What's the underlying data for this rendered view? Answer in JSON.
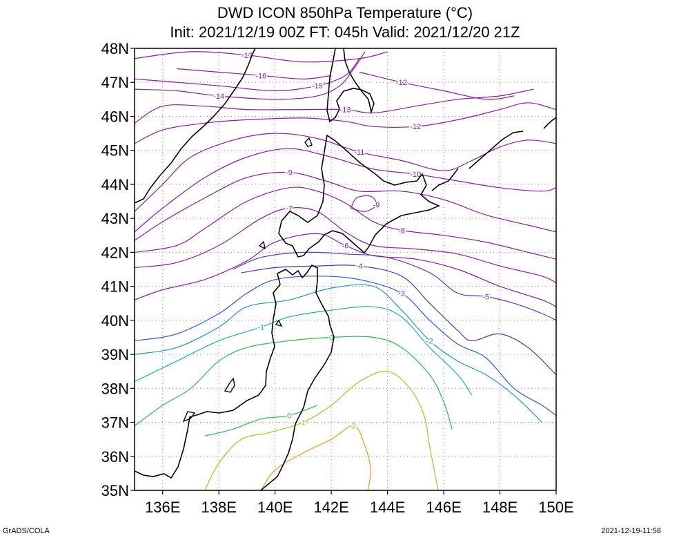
{
  "title": "DWD ICON 850hPa Temperature (°C)",
  "subtitle": "Init: 2021/12/19 00Z  FT: 045h  Valid: 2021/12/20 21Z",
  "footer_left": "GrADS/COLA",
  "footer_right": "2021-12-19-11:58",
  "map": {
    "lon_range": [
      135,
      150
    ],
    "lat_range": [
      35,
      48
    ],
    "lon_ticks": [
      136,
      138,
      140,
      142,
      144,
      146,
      148,
      150
    ],
    "lon_tick_labels": [
      "136E",
      "138E",
      "140E",
      "142E",
      "144E",
      "146E",
      "148E",
      "150E"
    ],
    "lat_ticks": [
      35,
      36,
      37,
      38,
      39,
      40,
      41,
      42,
      43,
      44,
      45,
      46,
      47,
      48
    ],
    "lat_tick_labels": [
      "35N",
      "36N",
      "37N",
      "38N",
      "39N",
      "40N",
      "41N",
      "42N",
      "43N",
      "44N",
      "45N",
      "46N",
      "47N",
      "48N"
    ],
    "grid": "dotted"
  },
  "isotherms": [
    {
      "value": -17,
      "color": "#8a1aa6",
      "pts": [
        [
          135.0,
          47.7
        ],
        [
          137.0,
          47.9
        ],
        [
          139.0,
          47.8
        ],
        [
          141.0,
          47.6
        ],
        [
          143.0,
          47.7
        ],
        [
          144.0,
          47.9
        ]
      ]
    },
    {
      "value": -16,
      "color": "#8a1aa6",
      "pts": [
        [
          136.5,
          47.4
        ],
        [
          138.0,
          47.3
        ],
        [
          139.5,
          47.2
        ],
        [
          141.0,
          47.1
        ],
        [
          142.0,
          47.2
        ]
      ]
    },
    {
      "value": -15,
      "color": "#8a1aa6",
      "pts": [
        [
          135.0,
          47.1
        ],
        [
          136.5,
          47.0
        ],
        [
          138.0,
          46.9
        ],
        [
          140.0,
          46.75
        ],
        [
          141.5,
          46.9
        ],
        [
          142.5,
          47.2
        ],
        [
          143.0,
          47.7
        ]
      ]
    },
    {
      "value": -14,
      "color": "#8a1aa6",
      "pts": [
        [
          135.0,
          46.8
        ],
        [
          136.5,
          46.75
        ],
        [
          138.0,
          46.6
        ],
        [
          140.0,
          46.5
        ],
        [
          141.5,
          46.6
        ],
        [
          142.3,
          46.9
        ],
        [
          142.8,
          47.4
        ],
        [
          143.2,
          47.9
        ]
      ]
    },
    {
      "value": -13,
      "color": "#8a1aa6",
      "pts": [
        [
          135.0,
          45.8
        ],
        [
          136.0,
          46.3
        ],
        [
          137.5,
          46.3
        ],
        [
          139.0,
          46.2
        ],
        [
          141.0,
          46.2
        ],
        [
          142.5,
          46.2
        ],
        [
          143.5,
          46.1
        ],
        [
          145.0,
          46.3
        ],
        [
          146.5,
          46.5
        ],
        [
          148.0,
          46.6
        ],
        [
          149.2,
          46.8
        ]
      ]
    },
    {
      "value": -12,
      "color": "#8a1aa6",
      "pts": [
        [
          135.0,
          45.2
        ],
        [
          136.0,
          45.6
        ],
        [
          137.5,
          45.8
        ],
        [
          139.0,
          45.9
        ],
        [
          141.0,
          45.95
        ],
        [
          142.5,
          45.85
        ],
        [
          143.5,
          45.7
        ],
        [
          145.0,
          45.7
        ],
        [
          146.5,
          45.9
        ],
        [
          148.0,
          46.2
        ],
        [
          149.0,
          46.4
        ],
        [
          150.0,
          46.2
        ]
      ]
    },
    {
      "value": -12,
      "color": "#8a1aa6",
      "pts": [
        [
          143.0,
          47.3
        ],
        [
          144.5,
          47.0
        ],
        [
          146.0,
          46.75
        ],
        [
          147.5,
          46.5
        ],
        [
          148.5,
          46.6
        ]
      ]
    },
    {
      "value": -11,
      "color": "#8a1aa6",
      "pts": [
        [
          135.0,
          43.2
        ],
        [
          136.0,
          44.0
        ],
        [
          137.0,
          44.8
        ],
        [
          138.5,
          45.3
        ],
        [
          140.0,
          45.5
        ],
        [
          141.5,
          45.35
        ],
        [
          143.0,
          44.95
        ],
        [
          144.5,
          44.7
        ],
        [
          146.0,
          44.4
        ],
        [
          147.0,
          44.7
        ],
        [
          148.0,
          45.1
        ],
        [
          149.0,
          45.3
        ],
        [
          150.0,
          45.2
        ]
      ]
    },
    {
      "value": -10,
      "color": "#8a1aa6",
      "pts": [
        [
          135.0,
          42.6
        ],
        [
          136.0,
          43.3
        ],
        [
          137.5,
          44.2
        ],
        [
          139.0,
          44.8
        ],
        [
          140.5,
          45.05
        ],
        [
          142.0,
          44.8
        ],
        [
          143.5,
          44.45
        ],
        [
          145.0,
          44.3
        ],
        [
          146.5,
          44.1
        ],
        [
          148.0,
          43.9
        ],
        [
          149.5,
          43.8
        ],
        [
          150.0,
          43.9
        ]
      ]
    },
    {
      "value": -9,
      "color": "#8a1aa6",
      "pts": [
        [
          135.0,
          42.35
        ],
        [
          136.0,
          42.9
        ],
        [
          137.5,
          43.6
        ],
        [
          139.0,
          44.2
        ],
        [
          140.5,
          44.35
        ],
        [
          141.8,
          44.1
        ],
        [
          143.0,
          43.8
        ],
        [
          144.5,
          43.8
        ],
        [
          146.0,
          43.55
        ],
        [
          147.5,
          43.1
        ],
        [
          149.0,
          42.8
        ],
        [
          150.0,
          42.6
        ]
      ]
    },
    {
      "value": -9,
      "color": "#8a1aa6",
      "pts": [
        [
          142.7,
          43.3
        ],
        [
          142.9,
          43.6
        ],
        [
          143.4,
          43.65
        ],
        [
          143.6,
          43.4
        ],
        [
          143.2,
          43.2
        ],
        [
          142.7,
          43.3
        ]
      ]
    },
    {
      "value": -8,
      "color": "#8a1aa6",
      "pts": [
        [
          135.0,
          42.0
        ],
        [
          136.5,
          42.2
        ],
        [
          137.5,
          42.7
        ],
        [
          139.0,
          43.5
        ],
        [
          140.5,
          43.9
        ],
        [
          141.5,
          43.8
        ],
        [
          142.5,
          43.45
        ],
        [
          143.5,
          42.9
        ],
        [
          144.5,
          42.65
        ],
        [
          146.0,
          42.5
        ],
        [
          147.5,
          42.3
        ],
        [
          149.0,
          42.0
        ],
        [
          150.0,
          41.8
        ]
      ]
    },
    {
      "value": -7,
      "color": "#8a1aa6",
      "pts": [
        [
          135.0,
          41.55
        ],
        [
          136.5,
          41.7
        ],
        [
          138.0,
          42.2
        ],
        [
          139.5,
          43.0
        ],
        [
          140.5,
          43.3
        ],
        [
          141.5,
          43.2
        ],
        [
          142.5,
          42.6
        ],
        [
          143.5,
          42.2
        ],
        [
          145.0,
          42.1
        ],
        [
          146.5,
          41.95
        ],
        [
          148.0,
          41.6
        ],
        [
          149.5,
          41.3
        ],
        [
          150.0,
          41.1
        ]
      ]
    },
    {
      "value": -6,
      "color": "#8a1aa6",
      "pts": [
        [
          135.0,
          40.6
        ],
        [
          136.0,
          40.9
        ],
        [
          137.5,
          41.2
        ],
        [
          139.0,
          41.75
        ],
        [
          140.0,
          42.3
        ],
        [
          141.5,
          42.55
        ],
        [
          142.5,
          42.2
        ],
        [
          143.5,
          41.9
        ],
        [
          145.0,
          41.8
        ],
        [
          146.5,
          41.5
        ],
        [
          148.0,
          41.0
        ],
        [
          149.5,
          40.6
        ],
        [
          150.0,
          40.4
        ]
      ]
    },
    {
      "value": -5,
      "color": "#6d2fbd",
      "pts": [
        [
          138.5,
          41.5
        ],
        [
          139.5,
          41.85
        ],
        [
          141.0,
          42.0
        ],
        [
          142.5,
          41.95
        ],
        [
          144.0,
          41.85
        ],
        [
          145.5,
          41.4
        ],
        [
          146.5,
          40.8
        ],
        [
          147.5,
          40.7
        ],
        [
          148.5,
          40.5
        ],
        [
          149.5,
          40.2
        ],
        [
          150.0,
          40.0
        ]
      ]
    },
    {
      "value": -4,
      "color": "#4638c8",
      "pts": [
        [
          138.8,
          41.4
        ],
        [
          140.0,
          41.55
        ],
        [
          141.5,
          41.6
        ],
        [
          143.0,
          41.6
        ],
        [
          144.5,
          41.3
        ],
        [
          145.5,
          40.5
        ],
        [
          146.5,
          39.7
        ],
        [
          147.0,
          39.4
        ],
        [
          148.0,
          39.6
        ],
        [
          149.0,
          39.2
        ],
        [
          150.0,
          38.4
        ]
      ]
    },
    {
      "value": -3,
      "color": "#2b58d8",
      "pts": [
        [
          135.0,
          39.4
        ],
        [
          136.5,
          39.6
        ],
        [
          138.0,
          40.2
        ],
        [
          139.0,
          40.8
        ],
        [
          140.0,
          41.2
        ],
        [
          141.5,
          41.3
        ],
        [
          143.0,
          41.2
        ],
        [
          144.5,
          40.8
        ],
        [
          145.5,
          40.0
        ],
        [
          146.5,
          39.3
        ],
        [
          147.5,
          38.9
        ],
        [
          148.5,
          38.0
        ],
        [
          149.5,
          37.5
        ],
        [
          150.0,
          37.2
        ]
      ]
    },
    {
      "value": -2,
      "color": "#1e98c8",
      "pts": [
        [
          135.0,
          39.0
        ],
        [
          136.5,
          39.2
        ],
        [
          138.0,
          39.8
        ],
        [
          139.0,
          40.4
        ],
        [
          140.5,
          40.6
        ],
        [
          142.0,
          40.95
        ],
        [
          143.5,
          41.0
        ],
        [
          144.5,
          40.3
        ],
        [
          145.5,
          39.4
        ],
        [
          146.5,
          38.8
        ],
        [
          147.5,
          38.4
        ],
        [
          148.5,
          37.8
        ],
        [
          149.5,
          37.0
        ]
      ]
    },
    {
      "value": -1,
      "color": "#1ab0a8",
      "pts": [
        [
          135.0,
          38.2
        ],
        [
          136.5,
          38.8
        ],
        [
          138.0,
          39.4
        ],
        [
          139.5,
          39.8
        ],
        [
          140.5,
          40.1
        ],
        [
          142.0,
          40.3
        ],
        [
          143.5,
          40.4
        ],
        [
          144.5,
          40.1
        ],
        [
          145.5,
          39.2
        ],
        [
          146.5,
          38.4
        ],
        [
          147.0,
          37.8
        ]
      ]
    },
    {
      "value": 0,
      "color": "#22c04a",
      "pts": [
        [
          135.0,
          36.9
        ],
        [
          136.0,
          37.5
        ],
        [
          137.0,
          38.0
        ],
        [
          138.0,
          38.8
        ],
        [
          139.0,
          39.2
        ],
        [
          140.5,
          39.4
        ],
        [
          142.0,
          39.5
        ],
        [
          143.5,
          39.5
        ],
        [
          144.5,
          39.2
        ],
        [
          145.5,
          38.4
        ],
        [
          146.0,
          37.6
        ],
        [
          146.3,
          36.8
        ]
      ]
    },
    {
      "value": 0,
      "color": "#22c04a",
      "pts": [
        [
          137.5,
          36.6
        ],
        [
          138.5,
          36.8
        ],
        [
          139.5,
          37.1
        ],
        [
          140.5,
          37.2
        ],
        [
          141.5,
          37.5
        ]
      ]
    },
    {
      "value": 1,
      "color": "#8ed220",
      "pts": [
        [
          137.5,
          35.0
        ],
        [
          138.0,
          35.8
        ],
        [
          138.8,
          36.5
        ],
        [
          139.8,
          36.7
        ],
        [
          141.0,
          37.0
        ],
        [
          142.0,
          37.5
        ],
        [
          143.0,
          38.2
        ],
        [
          144.0,
          38.5
        ],
        [
          144.8,
          38.0
        ],
        [
          145.3,
          37.2
        ],
        [
          145.5,
          36.3
        ],
        [
          145.8,
          35.0
        ]
      ]
    },
    {
      "value": 2,
      "color": "#e0a020",
      "pts": [
        [
          139.5,
          35.0
        ],
        [
          140.0,
          35.6
        ],
        [
          141.0,
          36.1
        ],
        [
          142.0,
          36.5
        ],
        [
          142.8,
          36.9
        ],
        [
          143.2,
          36.3
        ],
        [
          143.4,
          35.6
        ],
        [
          143.3,
          35.0
        ]
      ]
    }
  ]
}
